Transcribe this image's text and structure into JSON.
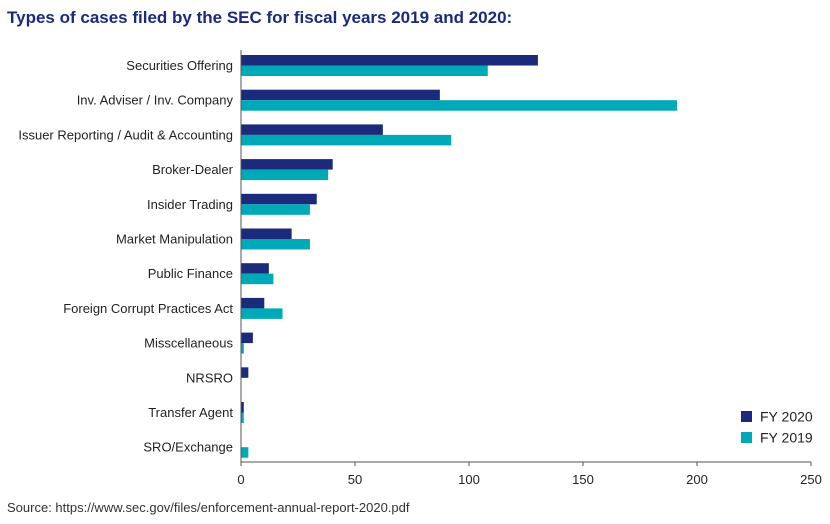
{
  "title": "Types of cases filed by the SEC for fiscal years 2019 and 2020:",
  "source": "Source: https://www.sec.gov/files/enforcement-annual-report-2020.pdf",
  "chart_data": {
    "type": "bar",
    "orientation": "horizontal",
    "title": "Types of cases filed by the SEC for fiscal years 2019 and 2020:",
    "categories": [
      "Securities Offering",
      "Inv. Adviser / Inv. Company",
      "Issuer Reporting / Audit & Accounting",
      "Broker-Dealer",
      "Insider Trading",
      "Market Manipulation",
      "Public Finance",
      "Foreign Corrupt Practices Act",
      "Misscellaneous",
      "NRSRO",
      "Transfer Agent",
      "SRO/Exchange"
    ],
    "series": [
      {
        "name": "FY 2020",
        "color": "#1b2a7a",
        "values": [
          130,
          87,
          62,
          40,
          33,
          22,
          12,
          10,
          5,
          3,
          1,
          0
        ]
      },
      {
        "name": "FY 2019",
        "color": "#00a9b8",
        "values": [
          108,
          191,
          92,
          38,
          30,
          30,
          14,
          18,
          1,
          0,
          1,
          3
        ]
      }
    ],
    "xlim": [
      0,
      250
    ],
    "xticks": [
      0,
      50,
      100,
      150,
      200,
      250
    ],
    "grid": false,
    "legend_position": "bottom-right"
  }
}
